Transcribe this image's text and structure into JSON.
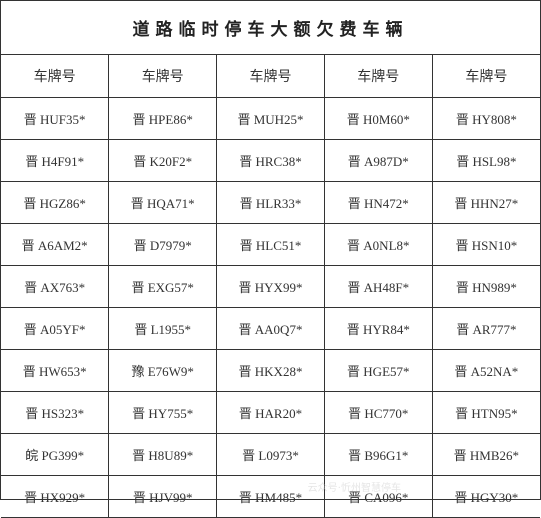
{
  "title": "道路临时停车大额欠费车辆",
  "columns": [
    "车牌号",
    "车牌号",
    "车牌号",
    "车牌号",
    "车牌号"
  ],
  "rows": [
    [
      "晋 HUF35*",
      "晋 HPE86*",
      "晋 MUH25*",
      "晋 H0M60*",
      "晋 HY808*"
    ],
    [
      "晋 H4F91*",
      "晋 K20F2*",
      "晋 HRC38*",
      "晋 A987D*",
      "晋 HSL98*"
    ],
    [
      "晋 HGZ86*",
      "晋 HQA71*",
      "晋 HLR33*",
      "晋 HN472*",
      "晋 HHN27*"
    ],
    [
      "晋 A6AM2*",
      "晋 D7979*",
      "晋 HLC51*",
      "晋 A0NL8*",
      "晋 HSN10*"
    ],
    [
      "晋 AX763*",
      "晋 EXG57*",
      "晋 HYX99*",
      "晋 AH48F*",
      "晋 HN989*"
    ],
    [
      "晋 A05YF*",
      "晋 L1955*",
      "晋 AA0Q7*",
      "晋 HYR84*",
      "晋 AR777*"
    ],
    [
      "晋 HW653*",
      "豫 E76W9*",
      "晋 HKX28*",
      "晋 HGE57*",
      "晋 A52NA*"
    ],
    [
      "晋 HS323*",
      "晋 HY755*",
      "晋 HAR20*",
      "晋 HC770*",
      "晋 HTN95*"
    ],
    [
      "皖 PG399*",
      "晋 H8U89*",
      "晋 L0973*",
      "晋 B96G1*",
      "晋 HMB26*"
    ],
    [
      "晋 HX929*",
      "晋 HJV99*",
      "晋 HM485*",
      "晋 CA096*",
      "晋 HGY30*"
    ]
  ],
  "watermark": "云众号·忻州智慧停车",
  "styling": {
    "background_color": "#ffffff",
    "border_color": "#333333",
    "text_color": "#333333",
    "title_color": "#222222",
    "title_fontsize": 17,
    "header_fontsize": 14,
    "cell_fontsize": 13,
    "title_letter_spacing": 6,
    "watermark_color": "#cccccc"
  }
}
